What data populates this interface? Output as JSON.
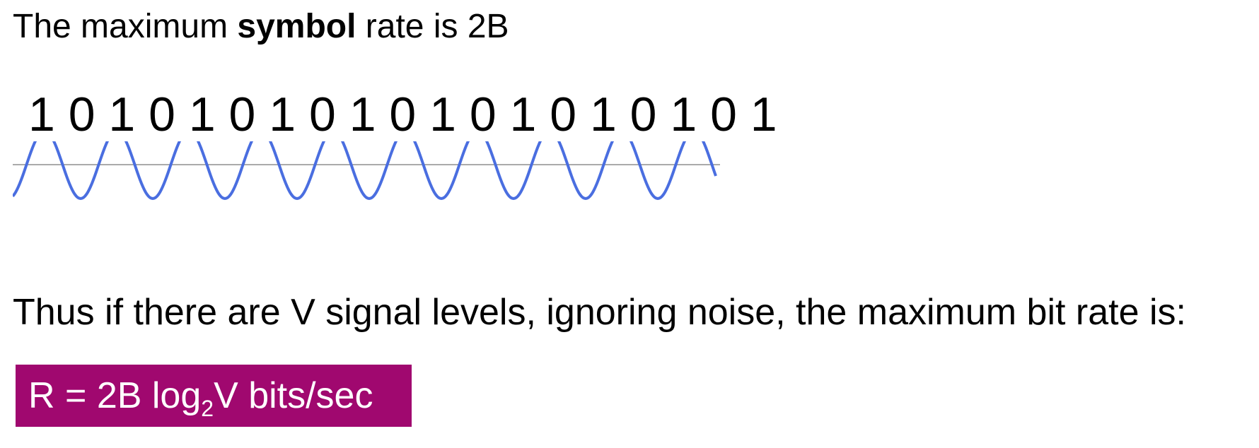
{
  "heading": {
    "prefix": "The maximum ",
    "bold": "symbol",
    "suffix": " rate is 2B"
  },
  "bit_sequence": "1 0 1 0 1 0 1 0 1 0 1 0 1 0 1 0 1 0 1",
  "waveform": {
    "cycles": 10,
    "wave_color": "#4a6ee0",
    "axis_color": "#aaaaaa"
  },
  "statement": "Thus if there are V signal levels, ignoring noise, the maximum bit rate is:",
  "formula": {
    "before_sub": "R = 2B log",
    "subscript": "2",
    "after_sub": "V bits/sec",
    "background": "#a0086f"
  }
}
